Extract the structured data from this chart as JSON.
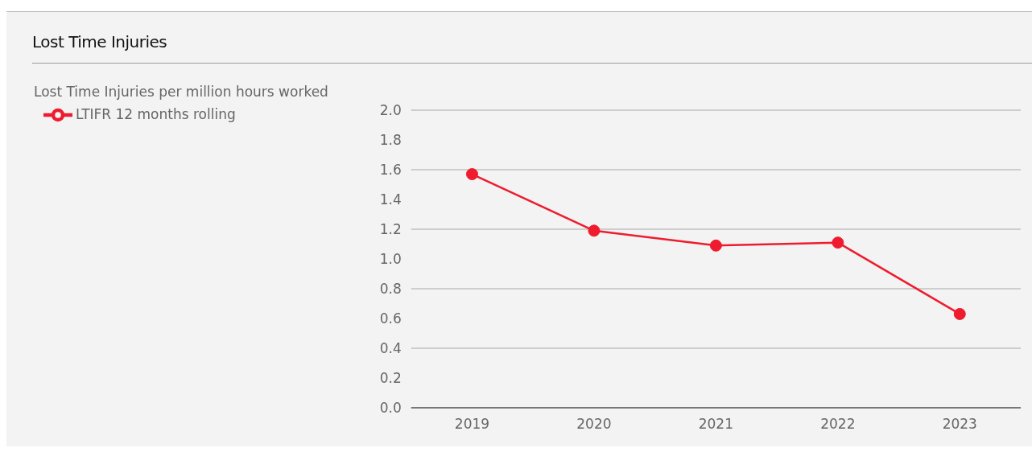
{
  "chart_data": {
    "type": "line",
    "title": "Lost Time Injuries",
    "subtitle": "Lost Time Injuries per million hours worked",
    "categories": [
      "2019",
      "2020",
      "2021",
      "2022",
      "2023"
    ],
    "series": [
      {
        "name": "LTIFR 12 months rolling",
        "color": "#ee1c2e",
        "values": [
          1.57,
          1.19,
          1.09,
          1.11,
          0.63
        ]
      }
    ],
    "ylim": [
      0,
      2
    ],
    "yticks": [
      {
        "value": 0,
        "label": "0.0"
      },
      0.2,
      0.4,
      0.6,
      0.8,
      {
        "value": 1,
        "label": "1.0"
      },
      1.2,
      1.4,
      1.6,
      1.8,
      {
        "value": 2,
        "label": "2.0"
      }
    ],
    "grid": "y",
    "legend": "top left",
    "marker": "circle",
    "line_style": "solid"
  }
}
